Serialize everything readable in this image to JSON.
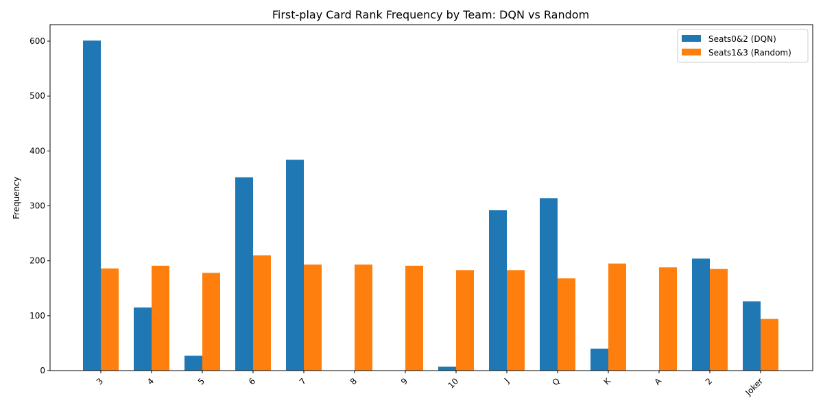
{
  "chart_data": {
    "type": "bar",
    "title": "First-play Card Rank Frequency by Team: DQN vs Random",
    "xlabel": "",
    "ylabel": "Frequency",
    "ylim": [
      0,
      630
    ],
    "yticks": [
      0,
      100,
      200,
      300,
      400,
      500,
      600
    ],
    "categories": [
      "3",
      "4",
      "5",
      "6",
      "7",
      "8",
      "9",
      "10",
      "J",
      "Q",
      "K",
      "A",
      "2",
      "Joker"
    ],
    "series": [
      {
        "name": "Seats0&2 (DQN)",
        "color": "#1f77b4",
        "values": [
          601,
          115,
          27,
          352,
          384,
          0,
          0,
          7,
          292,
          314,
          40,
          0,
          204,
          126
        ]
      },
      {
        "name": "Seats1&3 (Random)",
        "color": "#ff7f0e",
        "values": [
          186,
          191,
          178,
          210,
          193,
          193,
          191,
          183,
          183,
          168,
          195,
          188,
          185,
          94
        ]
      }
    ],
    "legend_position": "top-right",
    "grid": false,
    "xtick_rotation": 45
  }
}
